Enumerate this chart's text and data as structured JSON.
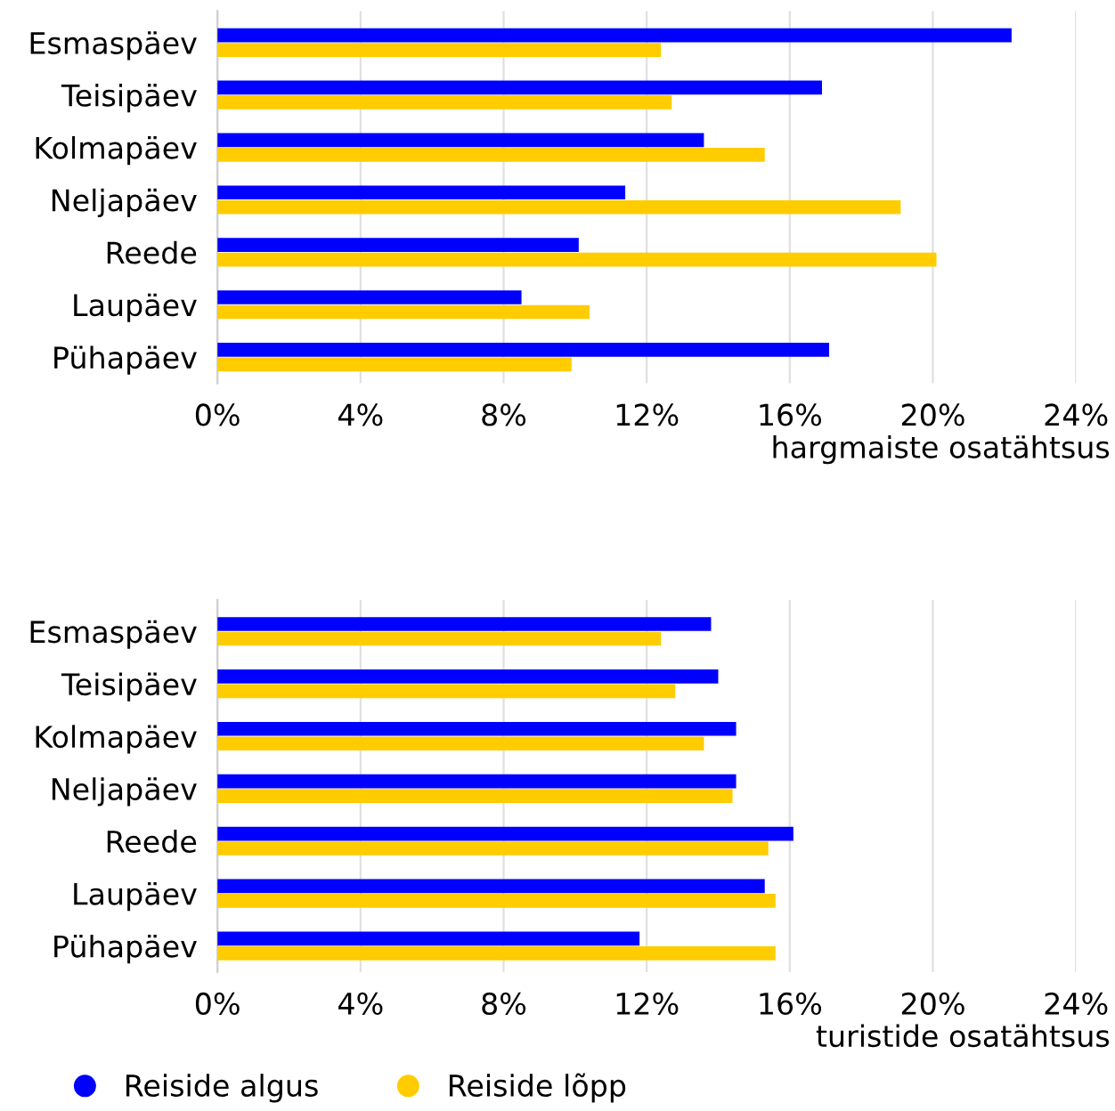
{
  "chart_data": [
    {
      "type": "bar",
      "orientation": "horizontal",
      "xlabel": "hargmaiste osatähtsus",
      "categories": [
        "Esmaspäev",
        "Teisipäev",
        "Kolmapäev",
        "Neljapäev",
        "Reede",
        "Laupäev",
        "Pühapäev"
      ],
      "series": [
        {
          "color": "#0000ff",
          "values": [
            22.2,
            16.9,
            13.6,
            11.4,
            10.1,
            8.5,
            17.1
          ]
        },
        {
          "color": "#ffcc00",
          "values": [
            12.4,
            12.7,
            15.3,
            19.1,
            20.1,
            10.4,
            9.9
          ]
        }
      ],
      "xlim": [
        0,
        24
      ],
      "xticks": [
        {
          "value": 0,
          "label": "0%"
        },
        {
          "value": 4,
          "label": "4%"
        },
        {
          "value": 8,
          "label": "8%"
        },
        {
          "value": 12,
          "label": "12%"
        },
        {
          "value": 16,
          "label": "16%"
        },
        {
          "value": 20,
          "label": "20%"
        },
        {
          "value": 24,
          "label": "24%"
        }
      ],
      "grid": "x"
    },
    {
      "type": "bar",
      "orientation": "horizontal",
      "xlabel": "turistide osatähtsus",
      "categories": [
        "Esmaspäev",
        "Teisipäev",
        "Kolmapäev",
        "Neljapäev",
        "Reede",
        "Laupäev",
        "Pühapäev"
      ],
      "series": [
        {
          "name": "Reiside algus",
          "color": "#0000ff",
          "values": [
            13.8,
            14.0,
            14.5,
            14.5,
            16.1,
            15.3,
            11.8
          ]
        },
        {
          "name": "Reiside lõpp",
          "color": "#ffcc00",
          "values": [
            12.4,
            12.8,
            13.6,
            14.4,
            15.4,
            15.6,
            15.6
          ]
        }
      ],
      "xlim": [
        0,
        24
      ],
      "xticks": [
        {
          "value": 0,
          "label": "0%"
        },
        {
          "value": 4,
          "label": "4%"
        },
        {
          "value": 8,
          "label": "8%"
        },
        {
          "value": 12,
          "label": "12%"
        },
        {
          "value": 16,
          "label": "16%"
        },
        {
          "value": 20,
          "label": "20%"
        },
        {
          "value": 24,
          "label": "24%"
        }
      ],
      "grid": "x",
      "legend": "bottom left",
      "marker": "circle"
    }
  ]
}
